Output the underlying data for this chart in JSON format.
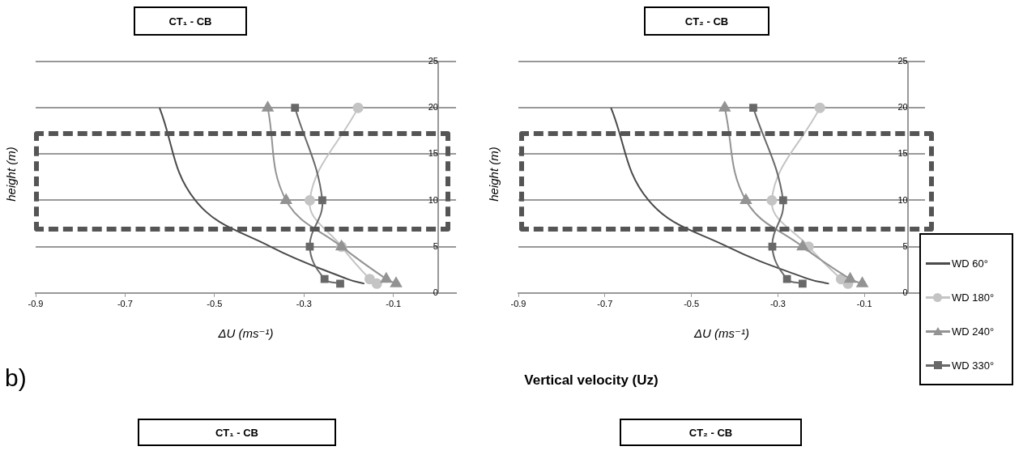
{
  "chart_data": [
    {
      "type": "line",
      "title": "CT₁ - CB",
      "xlabel": "ΔU (ms⁻¹)",
      "ylabel": "height (m)",
      "xlim": [
        -0.9,
        0.04
      ],
      "xticks": [
        -0.9,
        -0.7,
        -0.5,
        -0.3,
        -0.1
      ],
      "ylim": [
        0,
        25
      ],
      "yticks": [
        0,
        5,
        10,
        15,
        20,
        25
      ],
      "grid": "y",
      "series": [
        {
          "color": "#4a4a4a",
          "marker": "none",
          "x": [
            -0.623,
            -0.543,
            -0.375,
            -0.203,
            -0.165
          ],
          "values": [
            20,
            10,
            5,
            1.5,
            1
          ]
        },
        {
          "color": "#c4c4c4",
          "marker": "circle",
          "x": [
            -0.179,
            -0.287,
            -0.216,
            -0.153,
            -0.137
          ],
          "values": [
            20,
            10,
            5,
            1.5,
            1
          ]
        },
        {
          "color": "#939393",
          "marker": "triangle",
          "x": [
            -0.381,
            -0.34,
            -0.216,
            -0.116,
            -0.094
          ],
          "values": [
            20,
            10,
            5,
            1.5,
            1
          ]
        },
        {
          "color": "#686868",
          "marker": "square",
          "x": [
            -0.32,
            -0.259,
            -0.287,
            -0.254,
            -0.219
          ],
          "values": [
            20,
            10,
            5,
            1.5,
            1
          ]
        }
      ]
    },
    {
      "type": "line",
      "title": "CT₂ - CB",
      "xlabel": "ΔU (ms⁻¹)",
      "ylabel": "height (m)",
      "xlim": [
        -0.9,
        0.04
      ],
      "xticks": [
        -0.9,
        -0.7,
        -0.5,
        -0.3,
        -0.1
      ],
      "ylim": [
        0,
        25
      ],
      "yticks": [
        0,
        5,
        10,
        15,
        20,
        25
      ],
      "grid": "y",
      "legend": "bottom right",
      "series": [
        {
          "name": "WD 60°",
          "color": "#4a4a4a",
          "marker": "none",
          "x": [
            -0.686,
            -0.599,
            -0.417,
            -0.229,
            -0.182
          ],
          "values": [
            20,
            10,
            5,
            1.5,
            1
          ]
        },
        {
          "name": "WD 180°",
          "color": "#c4c4c4",
          "marker": "circle",
          "x": [
            -0.203,
            -0.314,
            -0.229,
            -0.154,
            -0.138
          ],
          "values": [
            20,
            10,
            5,
            1.5,
            1
          ]
        },
        {
          "name": "WD 240°",
          "color": "#939393",
          "marker": "triangle",
          "x": [
            -0.423,
            -0.374,
            -0.243,
            -0.133,
            -0.105
          ],
          "values": [
            20,
            10,
            5,
            1.5,
            1
          ]
        },
        {
          "name": "WD 330°",
          "color": "#686868",
          "marker": "square",
          "x": [
            -0.357,
            -0.288,
            -0.313,
            -0.279,
            -0.243
          ],
          "values": [
            20,
            10,
            5,
            1.5,
            1
          ]
        }
      ]
    },
    {
      "type": "other",
      "title": "Vertical velocity (Uz)",
      "annotations": [
        "b)",
        "CT₁ - CB",
        "CT₂ - CB"
      ]
    }
  ]
}
